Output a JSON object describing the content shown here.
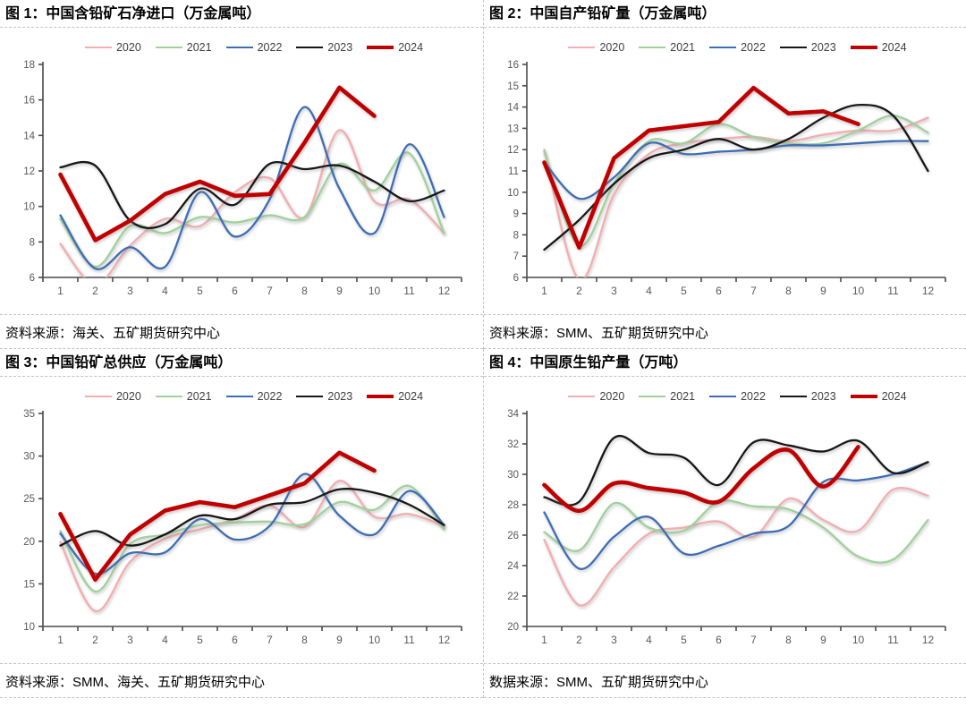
{
  "chart_data": [
    {
      "id": "fig1",
      "type": "line",
      "title": "图 1：中国含铅矿石净进口（万金属吨）",
      "source": "资料来源：海关、五矿期货研究中心",
      "xlabel": "",
      "ylabel": "",
      "x_categories": [
        "1",
        "2",
        "3",
        "4",
        "5",
        "6",
        "7",
        "8",
        "9",
        "10",
        "11",
        "12"
      ],
      "ylim": [
        6,
        18
      ],
      "ytick_step": 2,
      "grid": false,
      "legend_position": "top",
      "series": [
        {
          "name": "2020",
          "color": "#F4ADB0",
          "smooth": true,
          "emphasis": false,
          "values": [
            7.9,
            5.6,
            7.8,
            9.3,
            8.9,
            10.8,
            11.6,
            9.4,
            14.3,
            10.3,
            10.4,
            8.5
          ]
        },
        {
          "name": "2021",
          "color": "#9FD29B",
          "smooth": true,
          "emphasis": false,
          "values": [
            9.3,
            6.6,
            8.9,
            8.5,
            9.4,
            9.1,
            9.5,
            9.4,
            12.4,
            10.9,
            13.0,
            8.5
          ]
        },
        {
          "name": "2022",
          "color": "#3E6DB5",
          "smooth": true,
          "emphasis": false,
          "values": [
            9.5,
            6.5,
            7.7,
            6.6,
            10.8,
            8.3,
            10.4,
            15.6,
            11.0,
            8.5,
            13.5,
            9.4
          ]
        },
        {
          "name": "2023",
          "color": "#171717",
          "smooth": true,
          "emphasis": false,
          "values": [
            12.2,
            12.3,
            9.2,
            9.0,
            11.0,
            10.1,
            12.4,
            12.1,
            12.3,
            11.4,
            10.3,
            10.9
          ]
        },
        {
          "name": "2024",
          "color": "#C00000",
          "smooth": false,
          "emphasis": true,
          "values": [
            11.8,
            8.1,
            9.2,
            10.7,
            11.4,
            10.6,
            10.7,
            13.6,
            16.7,
            15.1
          ]
        }
      ]
    },
    {
      "id": "fig2",
      "type": "line",
      "title": "图 2：中国自产铅矿量（万金属吨）",
      "source": "资料来源：SMM、五矿期货研究中心",
      "xlabel": "",
      "ylabel": "",
      "x_categories": [
        "1",
        "2",
        "3",
        "4",
        "5",
        "6",
        "7",
        "8",
        "9",
        "10",
        "11",
        "12"
      ],
      "ylim": [
        6,
        16
      ],
      "ytick_step": 1,
      "grid": false,
      "legend_position": "top",
      "series": [
        {
          "name": "2020",
          "color": "#F4ADB0",
          "smooth": true,
          "emphasis": false,
          "values": [
            12.0,
            5.9,
            9.9,
            11.8,
            12.3,
            12.5,
            12.6,
            12.4,
            12.7,
            12.9,
            12.9,
            13.5
          ]
        },
        {
          "name": "2021",
          "color": "#9FD29B",
          "smooth": true,
          "emphasis": false,
          "values": [
            11.9,
            7.5,
            10.4,
            12.4,
            12.3,
            13.2,
            12.6,
            12.3,
            12.3,
            12.9,
            13.6,
            12.8
          ]
        },
        {
          "name": "2022",
          "color": "#3E6DB5",
          "smooth": true,
          "emphasis": false,
          "values": [
            11.4,
            9.7,
            10.7,
            12.3,
            11.8,
            11.9,
            12.0,
            12.2,
            12.2,
            12.3,
            12.4,
            12.4
          ]
        },
        {
          "name": "2023",
          "color": "#171717",
          "smooth": true,
          "emphasis": false,
          "values": [
            7.3,
            8.7,
            10.4,
            11.6,
            12.0,
            12.5,
            12.0,
            12.5,
            13.5,
            14.1,
            13.6,
            11.0
          ]
        },
        {
          "name": "2024",
          "color": "#C00000",
          "smooth": false,
          "emphasis": true,
          "values": [
            11.4,
            7.4,
            11.6,
            12.9,
            13.1,
            13.3,
            14.9,
            13.7,
            13.8,
            13.2
          ]
        }
      ]
    },
    {
      "id": "fig3",
      "type": "line",
      "title": "图 3：中国铅矿总供应（万金属吨）",
      "source": "资料来源：SMM、海关、五矿期货研究中心",
      "xlabel": "",
      "ylabel": "",
      "x_categories": [
        "1",
        "2",
        "3",
        "4",
        "5",
        "6",
        "7",
        "8",
        "9",
        "10",
        "11",
        "12"
      ],
      "ylim": [
        10,
        35
      ],
      "ytick_step": 5,
      "grid": false,
      "legend_position": "top",
      "series": [
        {
          "name": "2020",
          "color": "#F4ADB0",
          "smooth": true,
          "emphasis": false,
          "values": [
            19.9,
            11.8,
            17.6,
            20.3,
            21.4,
            22.6,
            24.2,
            21.7,
            27.1,
            22.9,
            23.2,
            21.8
          ]
        },
        {
          "name": "2021",
          "color": "#9FD29B",
          "smooth": true,
          "emphasis": false,
          "values": [
            21.2,
            14.1,
            19.7,
            20.8,
            21.9,
            22.2,
            22.3,
            22.0,
            24.6,
            23.7,
            26.5,
            21.4
          ]
        },
        {
          "name": "2022",
          "color": "#3E6DB5",
          "smooth": true,
          "emphasis": false,
          "values": [
            20.9,
            16.2,
            18.6,
            18.7,
            22.6,
            20.2,
            21.8,
            27.9,
            23.0,
            20.8,
            25.9,
            21.9
          ]
        },
        {
          "name": "2023",
          "color": "#171717",
          "smooth": true,
          "emphasis": false,
          "values": [
            19.5,
            21.2,
            19.5,
            20.8,
            23.0,
            22.6,
            24.3,
            24.6,
            26.1,
            25.7,
            24.3,
            21.9
          ]
        },
        {
          "name": "2024",
          "color": "#C00000",
          "smooth": false,
          "emphasis": true,
          "values": [
            23.2,
            15.5,
            20.8,
            23.6,
            24.6,
            24.0,
            25.4,
            26.8,
            30.4,
            28.3
          ]
        }
      ]
    },
    {
      "id": "fig4",
      "type": "line",
      "title": "图 4：中国原生铅产量（万吨）",
      "source": "数据来源：SMM、五矿期货研究中心",
      "xlabel": "",
      "ylabel": "",
      "x_categories": [
        "1",
        "2",
        "3",
        "4",
        "5",
        "6",
        "7",
        "8",
        "9",
        "10",
        "11",
        "12"
      ],
      "ylim": [
        20,
        34
      ],
      "ytick_step": 2,
      "grid": false,
      "legend_position": "top",
      "series": [
        {
          "name": "2020",
          "color": "#F4ADB0",
          "smooth": true,
          "emphasis": false,
          "values": [
            25.7,
            21.4,
            23.9,
            26.1,
            26.5,
            26.9,
            25.9,
            28.4,
            27.0,
            26.3,
            29.0,
            28.6
          ]
        },
        {
          "name": "2021",
          "color": "#9FD29B",
          "smooth": true,
          "emphasis": false,
          "values": [
            26.2,
            25.0,
            28.1,
            26.5,
            26.3,
            28.2,
            27.9,
            27.7,
            26.5,
            24.6,
            24.4,
            27.0
          ]
        },
        {
          "name": "2022",
          "color": "#3E6DB5",
          "smooth": true,
          "emphasis": false,
          "values": [
            27.5,
            23.8,
            25.9,
            27.2,
            24.8,
            25.3,
            26.1,
            26.6,
            29.5,
            29.6,
            30.0,
            30.8
          ]
        },
        {
          "name": "2023",
          "color": "#171717",
          "smooth": true,
          "emphasis": false,
          "values": [
            28.5,
            28.2,
            32.4,
            31.4,
            31.1,
            29.3,
            32.1,
            31.9,
            31.5,
            32.2,
            30.1,
            30.8
          ]
        },
        {
          "name": "2024",
          "color": "#C00000",
          "smooth": true,
          "emphasis": true,
          "values": [
            29.3,
            27.6,
            29.4,
            29.1,
            28.8,
            28.2,
            30.4,
            31.6,
            29.2,
            31.8
          ]
        }
      ]
    }
  ]
}
